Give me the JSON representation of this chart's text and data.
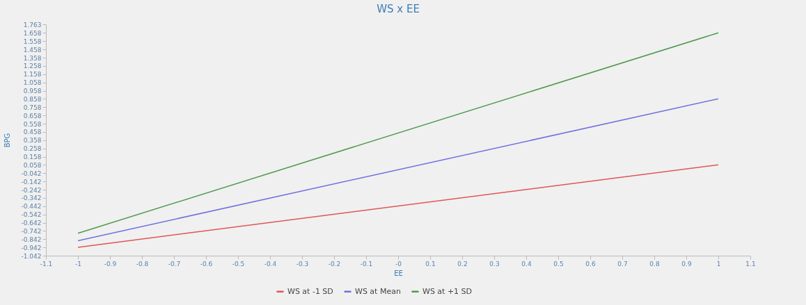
{
  "chart_data": {
    "type": "line",
    "title": "WS x EE",
    "xlabel": "EE",
    "ylabel": "BPG",
    "x": [
      -1,
      1
    ],
    "series": [
      {
        "name": "WS at -1 SD",
        "color": "#e05555",
        "values": [
          -0.94,
          0.06
        ]
      },
      {
        "name": "WS at Mean",
        "color": "#7070e0",
        "values": [
          -0.86,
          0.86
        ]
      },
      {
        "name": "WS at +1 SD",
        "color": "#4f9a4f",
        "values": [
          -0.77,
          1.66
        ]
      }
    ],
    "xlim": [
      -1.1,
      1.1
    ],
    "xticks": [
      -1.1,
      -1,
      -0.9,
      -0.8,
      -0.7,
      -0.6,
      -0.5,
      -0.4,
      -0.3,
      -0.2,
      -0.1,
      {
        "value": 0,
        "label": "-0"
      },
      0.1,
      0.2,
      0.3,
      0.4,
      0.5,
      0.6,
      0.7,
      0.8,
      0.9,
      1,
      1.1
    ],
    "ylim": [
      -1.042,
      1.763
    ],
    "yticks": [
      -1.042,
      -0.942,
      -0.842,
      -0.742,
      -0.642,
      -0.542,
      -0.442,
      -0.342,
      -0.242,
      -0.142,
      -0.042,
      0.058,
      0.158,
      0.258,
      0.358,
      0.458,
      0.558,
      0.658,
      0.758,
      0.858,
      0.958,
      1.058,
      1.158,
      1.258,
      1.358,
      1.458,
      1.558,
      1.658,
      1.763
    ],
    "grid": false,
    "legend": "bottom",
    "marker": "none",
    "line_style": "solid"
  }
}
